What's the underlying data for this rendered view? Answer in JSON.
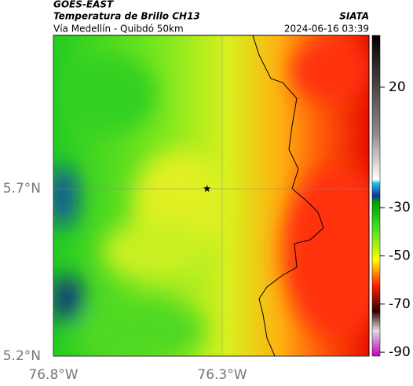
{
  "header": {
    "source": "GOES-EAST",
    "title": "Temperatura de Brillo CH13",
    "brand": "SIATA",
    "subtitle": "Vía Medellín - Quibdó 50km",
    "timestamp": "2024-06-16 03:39"
  },
  "map": {
    "xlim": [
      -76.8,
      -75.865
    ],
    "ylim": [
      5.2,
      6.158
    ],
    "xticks": [
      {
        "value": -76.8,
        "label": "76.8°W"
      },
      {
        "value": -76.3,
        "label": "76.3°W"
      }
    ],
    "yticks": [
      {
        "value": 5.2,
        "label": "5.2°N"
      },
      {
        "value": 5.7,
        "label": "5.7°N"
      }
    ],
    "marker": {
      "x": -76.345,
      "y": 5.7
    }
  },
  "colorbar": {
    "clim": [
      -91.6,
      41.5
    ],
    "ticks": [
      20,
      -30,
      -50,
      -70,
      -90
    ]
  }
}
